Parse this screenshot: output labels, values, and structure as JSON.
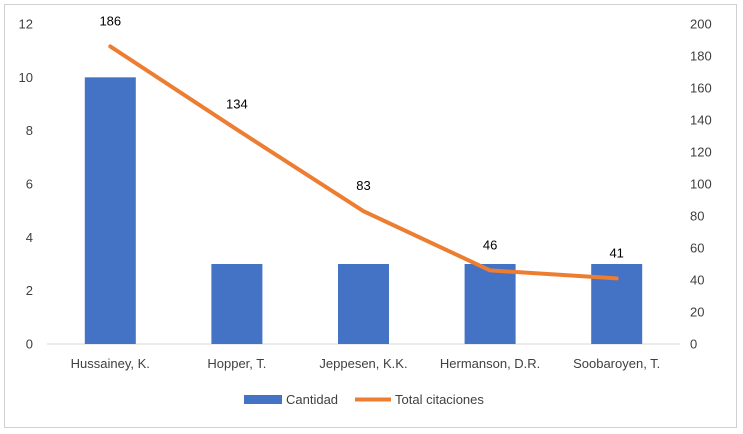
{
  "chart_data": {
    "type": "bar+line",
    "categories": [
      "Hussainey, K.",
      "Hopper, T.",
      "Jeppesen, K.K.",
      "Hermanson, D.R.",
      "Soobaroyen, T."
    ],
    "series": [
      {
        "name": "Cantidad",
        "type": "bar",
        "axis": "left",
        "values": [
          10,
          3,
          3,
          3,
          3
        ],
        "color": "#4472C4"
      },
      {
        "name": "Total citaciones",
        "type": "line",
        "axis": "right",
        "values": [
          186,
          134,
          83,
          46,
          41
        ],
        "color": "#ED7D31",
        "data_labels": [
          "186",
          "134",
          "83",
          "46",
          "41"
        ]
      }
    ],
    "y_left": {
      "min": 0,
      "max": 12,
      "step": 2,
      "ticks": [
        "0",
        "2",
        "4",
        "6",
        "8",
        "10",
        "12"
      ]
    },
    "y_right": {
      "min": 0,
      "max": 200,
      "step": 20,
      "ticks": [
        "0",
        "20",
        "40",
        "60",
        "80",
        "100",
        "120",
        "140",
        "160",
        "180",
        "200"
      ]
    },
    "grid": false,
    "legend": {
      "position": "bottom",
      "items": [
        "Cantidad",
        "Total citaciones"
      ]
    },
    "title": "",
    "xlabel": "",
    "ylabel": ""
  }
}
